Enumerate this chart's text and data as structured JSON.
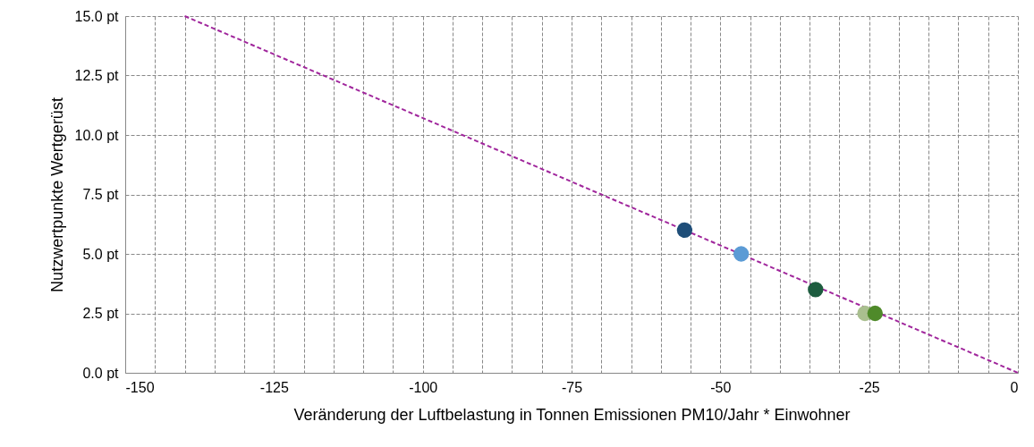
{
  "chart_data": {
    "type": "scatter",
    "xlabel": "Veränderung der Luftbelastung in Tonnen Emissionen PM10/Jahr * Einwohner",
    "ylabel": "Nutzwertpunkte Wertgerüst",
    "xlim": [
      -150,
      0
    ],
    "ylim": [
      0,
      15
    ],
    "xticks": [
      -150,
      {
        "value": -145,
        "label": null
      },
      {
        "value": -140,
        "label": null
      },
      {
        "value": -135,
        "label": null
      },
      {
        "value": -130,
        "label": null
      },
      -125,
      {
        "value": -120,
        "label": null
      },
      {
        "value": -115,
        "label": null
      },
      {
        "value": -110,
        "label": null
      },
      {
        "value": -105,
        "label": null
      },
      -100,
      {
        "value": -95,
        "label": null
      },
      {
        "value": -90,
        "label": null
      },
      {
        "value": -85,
        "label": null
      },
      {
        "value": -80,
        "label": null
      },
      -75,
      {
        "value": -70,
        "label": null
      },
      {
        "value": -65,
        "label": null
      },
      {
        "value": -60,
        "label": null
      },
      {
        "value": -55,
        "label": null
      },
      -50,
      {
        "value": -45,
        "label": null
      },
      {
        "value": -40,
        "label": null
      },
      {
        "value": -35,
        "label": null
      },
      {
        "value": -30,
        "label": null
      },
      -25,
      {
        "value": -20,
        "label": null
      },
      {
        "value": -15,
        "label": null
      },
      {
        "value": -10,
        "label": null
      },
      {
        "value": -5,
        "label": null
      },
      0
    ],
    "yticks": [
      {
        "value": 0,
        "label": "0.0 pt"
      },
      {
        "value": 2.5,
        "label": "2.5 pt"
      },
      {
        "value": 5,
        "label": "5.0 pt"
      },
      {
        "value": 7.5,
        "label": "7.5 pt"
      },
      {
        "value": 10,
        "label": "10.0 pt"
      },
      {
        "value": 12.5,
        "label": "12.5 pt"
      },
      {
        "value": 15,
        "label": "15.0 pt"
      }
    ],
    "grid": true,
    "marker": "circle",
    "series": [
      {
        "type": "scatter",
        "x": [
          -56,
          -46.5,
          -34,
          -25.7,
          -24
        ],
        "values": [
          6,
          5,
          3.5,
          2.5,
          2.5
        ],
        "colors": [
          "#1f4e79",
          "#5b9bd5",
          "#1d5c3f",
          "#a9bf8f",
          "#4f8a2a"
        ]
      },
      {
        "type": "line",
        "x": [
          -140,
          0
        ],
        "values": [
          15,
          0
        ],
        "color": "#a0269c",
        "line_style": "dashed",
        "marker": "none"
      }
    ]
  }
}
